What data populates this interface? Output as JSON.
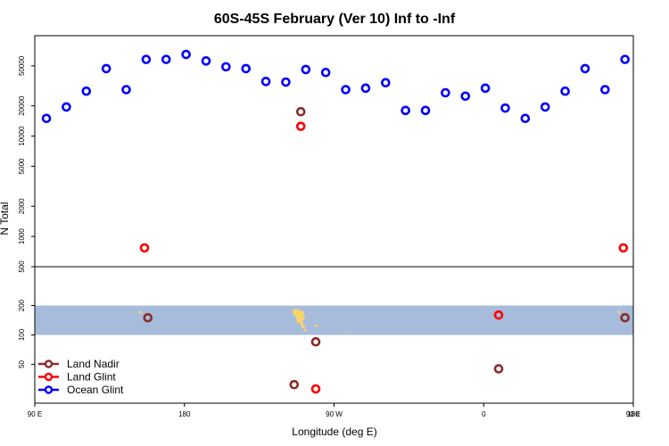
{
  "chart_data": {
    "type": "scatter",
    "title": "60S-45S February (Ver 10)   Inf to -Inf",
    "xlabel": "Longitude (deg E)",
    "ylabel": "N Total",
    "x_domain": "shifted longitude (90E at left, 180 wraps to -180, ends at 180)",
    "xlim": [
      90,
      450
    ],
    "xticks": [
      {
        "value": 90,
        "label": "90 E"
      },
      {
        "value": 180,
        "label": "180"
      },
      {
        "value": 270,
        "label": "90 W"
      },
      {
        "value": 360,
        "label": "0"
      },
      {
        "value": 450,
        "label": "90 E"
      },
      {
        "value": 540,
        "label": "180"
      }
    ],
    "upper_panel": {
      "scale": "log",
      "ylim": [
        500,
        100000
      ],
      "yticks": [
        500,
        1000,
        2000,
        5000,
        10000,
        20000,
        50000
      ]
    },
    "lower_panel": {
      "scale": "log",
      "ylim": [
        20,
        500
      ],
      "yticks": [
        50,
        100,
        200,
        500
      ],
      "shaded_band": [
        100,
        200
      ]
    },
    "legend": {
      "placement": "bottom-left",
      "entries": [
        {
          "label": "Land Nadir",
          "color": "#8b2b2b"
        },
        {
          "label": "Land Glint",
          "color": "#ff0000"
        },
        {
          "label": "Ocean Glint",
          "color": "#0000ff"
        }
      ]
    },
    "series": [
      {
        "name": "Ocean Glint",
        "color": "#0000ff",
        "panel": "upper",
        "points": [
          [
            97,
            15000
          ],
          [
            109,
            19500
          ],
          [
            121,
            28000
          ],
          [
            133,
            47000
          ],
          [
            145,
            29000
          ],
          [
            157,
            58000
          ],
          [
            169,
            58000
          ],
          [
            181,
            65000
          ],
          [
            193,
            56000
          ],
          [
            205,
            49000
          ],
          [
            217,
            47000
          ],
          [
            229,
            35000
          ],
          [
            241,
            34500
          ],
          [
            253,
            46000
          ],
          [
            265,
            43000
          ],
          [
            277,
            29000
          ],
          [
            289,
            30000
          ],
          [
            301,
            34000
          ],
          [
            313,
            18000
          ],
          [
            325,
            18000
          ],
          [
            337,
            27000
          ],
          [
            349,
            25000
          ],
          [
            361,
            30000
          ],
          [
            373,
            19000
          ],
          [
            385,
            15000
          ],
          [
            397,
            19500
          ],
          [
            409,
            28000
          ],
          [
            421,
            47000
          ],
          [
            433,
            29000
          ],
          [
            445,
            58000
          ]
        ]
      },
      {
        "name": "Land Glint",
        "color": "#ff0000",
        "panel": "mixed",
        "points": [
          [
            156,
            770,
            "upper"
          ],
          [
            250,
            12500,
            "upper"
          ],
          [
            444,
            770,
            "upper"
          ],
          [
            369,
            160,
            "lower"
          ],
          [
            259,
            28,
            "lower"
          ]
        ]
      },
      {
        "name": "Land Nadir",
        "color": "#8b2b2b",
        "panel": "mixed",
        "points": [
          [
            250,
            17500,
            "upper"
          ],
          [
            158,
            150,
            "lower"
          ],
          [
            445,
            150,
            "lower"
          ],
          [
            259,
            85,
            "lower"
          ],
          [
            369,
            45,
            "lower"
          ],
          [
            246,
            31,
            "lower"
          ]
        ]
      }
    ],
    "grid": false
  }
}
